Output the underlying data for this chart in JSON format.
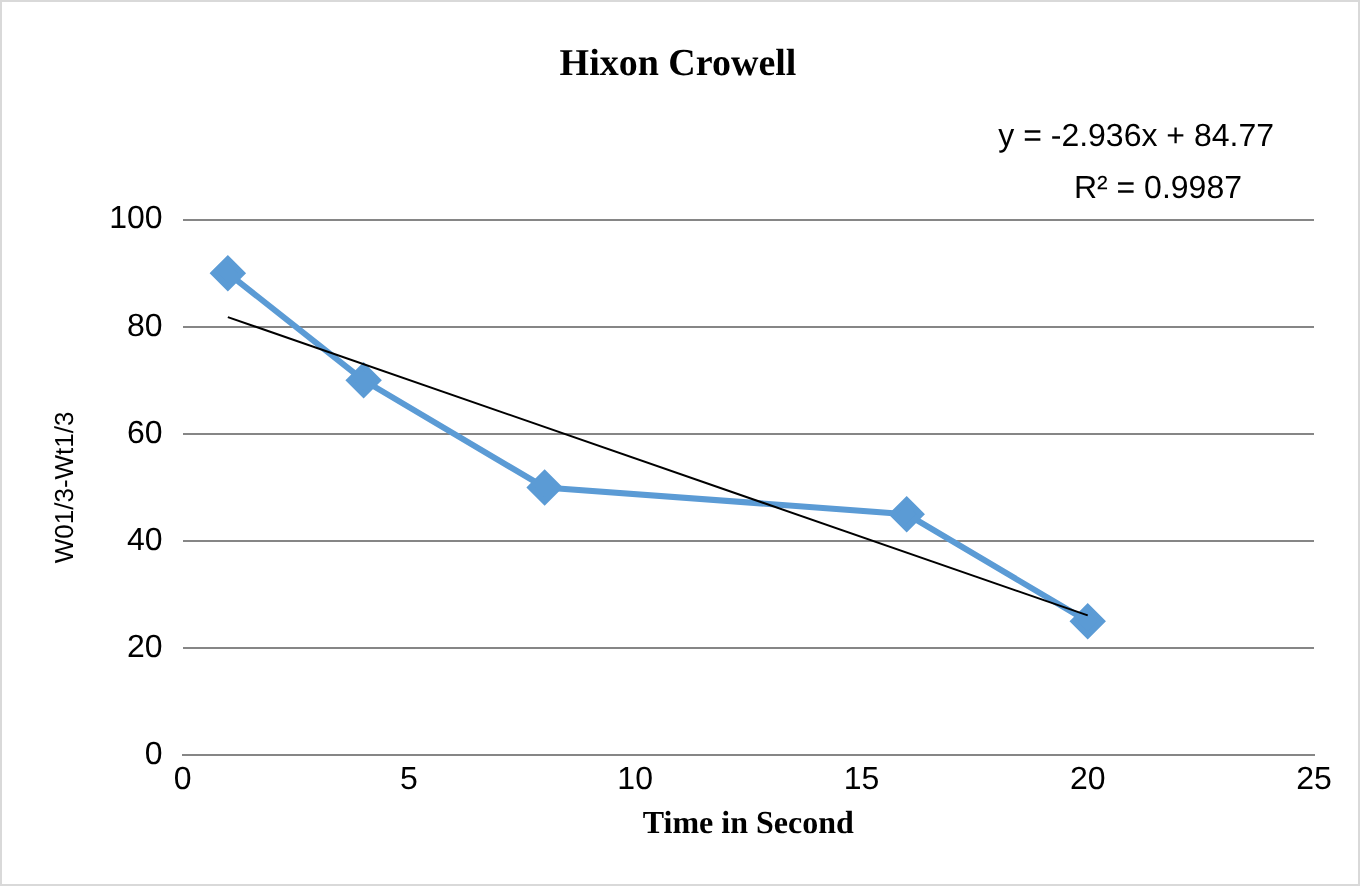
{
  "chart_data": {
    "type": "line",
    "title": "Hixon Crowell",
    "xlabel": "Time in Second",
    "ylabel": "W01/3-Wt1/3",
    "x": [
      1,
      4,
      8,
      16,
      20
    ],
    "series": [
      {
        "color": "#5b9bd5",
        "values": [
          90,
          70,
          50,
          45,
          25
        ],
        "marker": "diamond"
      },
      {
        "type": "line",
        "color": "#000000",
        "x": [
          1,
          20
        ],
        "values": [
          81.8,
          26.1
        ],
        "marker": "none"
      }
    ],
    "xlim": [
      0,
      25
    ],
    "xticks": [
      0,
      5,
      10,
      15,
      20,
      25
    ],
    "ylim": [
      0,
      100
    ],
    "yticks": [
      0,
      20,
      40,
      60,
      80,
      100
    ],
    "grid": "y",
    "legend": false,
    "line_style": "solid",
    "annotations": [
      "y = -2.936x + 84.77",
      "R² = 0.9987"
    ]
  }
}
